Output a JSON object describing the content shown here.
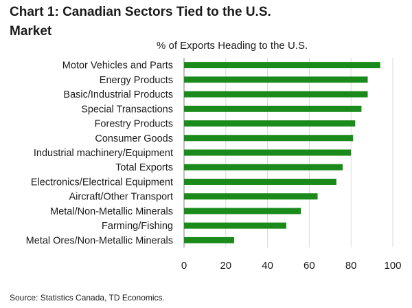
{
  "header": {
    "title": "Chart 1: Canadian Sectors Tied to the U.S. Market",
    "subtitle": "% of Exports Heading to the U.S."
  },
  "footer": {
    "source": "Source: Statistics Canada, TD Economics."
  },
  "colors": {
    "bar": "#1a8a1a",
    "grid": "#d9d9d9",
    "axis": "#7f7f7f"
  },
  "chart_data": {
    "type": "bar",
    "orientation": "horizontal",
    "title": "Chart 1: Canadian Sectors Tied to the U.S. Market",
    "xlabel": "% of Exports Heading to the U.S.",
    "ylabel": "",
    "categories": [
      "Motor Vehicles and Parts",
      "Energy Products",
      "Basic/Industrial Products",
      "Special Transactions",
      "Forestry Products",
      "Consumer Goods",
      "Industrial machinery/Equipment",
      "Total Exports",
      "Electronics/Electrical Equipment",
      "Aircraft/Other Transport",
      "Metal/Non-Metallic Minerals",
      "Farming/Fishing",
      "Metal Ores/Non-Metallic Minerals"
    ],
    "values": [
      94,
      88,
      88,
      85,
      82,
      81,
      80,
      76,
      73,
      64,
      56,
      49,
      24
    ],
    "xlim": [
      0,
      100
    ],
    "xticks": [
      "0",
      "20",
      "40",
      "60",
      "80",
      "100"
    ],
    "grid": true,
    "legend": "none"
  }
}
